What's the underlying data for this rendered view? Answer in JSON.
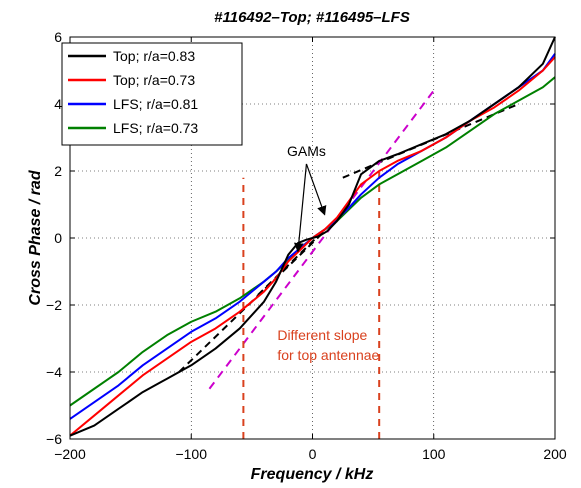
{
  "chart_data": {
    "type": "line",
    "title": "#116492–Top; #116495–LFS",
    "xlabel": "Frequency / kHz",
    "ylabel": "Cross Phase / rad",
    "xlim": [
      -200,
      200
    ],
    "ylim": [
      -6,
      6
    ],
    "xticks": [
      "−200",
      "−100",
      "0",
      "100",
      "200"
    ],
    "yticks": [
      "−6",
      "−4",
      "−2",
      "0",
      "2",
      "4",
      "6"
    ],
    "xtick_values": [
      -200,
      -100,
      0,
      100,
      200
    ],
    "ytick_values": [
      -6,
      -4,
      -2,
      0,
      2,
      4,
      6
    ],
    "grid": true,
    "legend_position": "top-left",
    "series": [
      {
        "name": "Top; r/a=0.83",
        "color": "#000000",
        "x": [
          -200,
          -180,
          -160,
          -140,
          -120,
          -100,
          -80,
          -60,
          -40,
          -30,
          -20,
          -12,
          -5,
          0,
          5,
          12,
          20,
          30,
          40,
          55,
          70,
          90,
          110,
          130,
          150,
          170,
          190,
          200
        ],
        "y": [
          -5.9,
          -5.6,
          -5.1,
          -4.6,
          -4.2,
          -3.8,
          -3.3,
          -2.7,
          -1.9,
          -1.3,
          -0.5,
          -0.15,
          -0.05,
          0.0,
          0.05,
          0.2,
          0.5,
          1.0,
          1.9,
          2.3,
          2.5,
          2.8,
          3.1,
          3.5,
          4.0,
          4.5,
          5.2,
          6.0
        ]
      },
      {
        "name": "Top; r/a=0.73",
        "color": "#ff0000",
        "x": [
          -200,
          -180,
          -160,
          -140,
          -120,
          -100,
          -80,
          -60,
          -40,
          -30,
          -20,
          -10,
          0,
          10,
          20,
          30,
          40,
          55,
          70,
          90,
          110,
          130,
          150,
          170,
          190,
          200
        ],
        "y": [
          -5.9,
          -5.3,
          -4.7,
          -4.1,
          -3.6,
          -3.1,
          -2.7,
          -2.2,
          -1.6,
          -1.2,
          -0.7,
          -0.35,
          0.0,
          0.25,
          0.6,
          1.1,
          1.6,
          2.0,
          2.3,
          2.6,
          3.0,
          3.5,
          3.9,
          4.4,
          5.0,
          5.4
        ]
      },
      {
        "name": "LFS; r/a=0.81",
        "color": "#0000ff",
        "x": [
          -200,
          -180,
          -160,
          -140,
          -120,
          -100,
          -80,
          -60,
          -40,
          -30,
          -20,
          -10,
          0,
          10,
          20,
          30,
          40,
          55,
          70,
          90,
          110,
          130,
          150,
          170,
          190,
          200
        ],
        "y": [
          -5.4,
          -4.9,
          -4.4,
          -3.8,
          -3.3,
          -2.8,
          -2.4,
          -1.9,
          -1.3,
          -1.0,
          -0.6,
          -0.3,
          0.0,
          0.25,
          0.55,
          0.9,
          1.3,
          1.8,
          2.2,
          2.6,
          3.0,
          3.5,
          4.0,
          4.5,
          5.0,
          5.5
        ]
      },
      {
        "name": "LFS; r/a=0.73",
        "color": "#008000",
        "x": [
          -200,
          -180,
          -160,
          -140,
          -120,
          -100,
          -80,
          -60,
          -40,
          -30,
          -20,
          -10,
          0,
          10,
          20,
          30,
          40,
          55,
          70,
          90,
          110,
          130,
          150,
          170,
          190,
          200
        ],
        "y": [
          -5.0,
          -4.5,
          -4.0,
          -3.4,
          -2.9,
          -2.5,
          -2.2,
          -1.8,
          -1.3,
          -1.0,
          -0.65,
          -0.3,
          0.0,
          0.25,
          0.5,
          0.85,
          1.2,
          1.6,
          1.9,
          2.3,
          2.7,
          3.2,
          3.7,
          4.1,
          4.5,
          4.8
        ]
      }
    ],
    "reference_lines": [
      {
        "kind": "black-dashed-fit",
        "color": "#000000",
        "x": [
          -110,
          7
        ],
        "y": [
          -4.0,
          0.1
        ]
      },
      {
        "kind": "black-dashed-fit",
        "color": "#000000",
        "x": [
          -45,
          10
        ],
        "y": [
          -1.7,
          0.25
        ]
      },
      {
        "kind": "black-dashed-fit",
        "color": "#000000",
        "x": [
          25,
          170
        ],
        "y": [
          1.8,
          4.0
        ]
      },
      {
        "kind": "magenta-dashed-slope",
        "color": "#cc00cc",
        "x": [
          -85,
          100
        ],
        "y": [
          -4.5,
          4.4
        ]
      },
      {
        "kind": "vertical-dashed",
        "color": "#d9411e",
        "x": [
          -57,
          -57
        ],
        "y": [
          -6,
          1.8
        ]
      },
      {
        "kind": "vertical-dashed",
        "color": "#d9411e",
        "x": [
          55,
          55
        ],
        "y": [
          -6,
          2.0
        ]
      }
    ],
    "annotations": [
      {
        "text": "GAMs",
        "color": "#000000",
        "x": -5,
        "y": 2.45,
        "arrows_to": [
          [
            -12,
            -0.4
          ],
          [
            10,
            0.7
          ]
        ]
      },
      {
        "text_lines": [
          "Different slope",
          "for top antennae"
        ],
        "color": "#d9411e",
        "x": -29,
        "y": -3.05
      }
    ]
  }
}
